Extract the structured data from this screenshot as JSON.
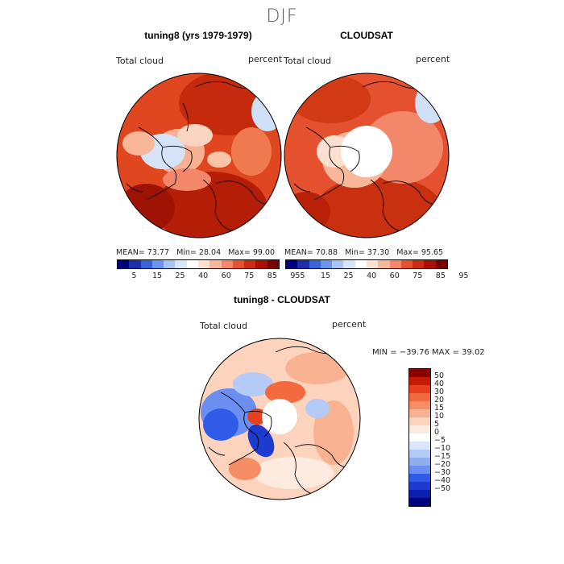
{
  "figure": {
    "title": "DJF"
  },
  "panels": {
    "model": {
      "title": "tuning8 (yrs 1979-1979)",
      "variable": "Total cloud",
      "units": "percent",
      "mean_label": "MEAN=",
      "mean": "73.77",
      "min_label": "Min=",
      "min": "28.04",
      "max_label": "Max=",
      "max": "99.00"
    },
    "obs": {
      "title": "CLOUDSAT",
      "variable": "Total cloud",
      "units": "percent",
      "mean_label": "MEAN=",
      "mean": "70.88",
      "min_label": "Min=",
      "min": "37.30",
      "max_label": "Max=",
      "max": "95.65"
    },
    "diff": {
      "title": "tuning8 - CLOUDSAT",
      "variable": "Total cloud",
      "units": "percent",
      "minmax_text": "MIN = −39.76 MAX =  39.02"
    }
  },
  "colorbars": {
    "abs_ticks": [
      "5",
      "15",
      "25",
      "40",
      "60",
      "75",
      "85",
      "95"
    ],
    "abs_colors": [
      "#00007f",
      "#1a2fa8",
      "#3a63d8",
      "#6d94ec",
      "#a6c4f5",
      "#d6e6fb",
      "#ffffff",
      "#fde0cf",
      "#f9b79a",
      "#f3876a",
      "#e5502f",
      "#cf2a14",
      "#a90f05",
      "#7a0000"
    ],
    "diff_ticks": [
      "50",
      "40",
      "30",
      "20",
      "15",
      "10",
      "5",
      "0",
      "−5",
      "−10",
      "−15",
      "−20",
      "−30",
      "−40",
      "−50"
    ],
    "diff_colors": [
      "#8b0000",
      "#c51b05",
      "#e8401c",
      "#f46a3f",
      "#f78d65",
      "#f9b291",
      "#fcd3bd",
      "#fdebe0",
      "#ffffff",
      "#d9e6fb",
      "#b3cbf6",
      "#8eaeee",
      "#6b8ff0",
      "#2f5be6",
      "#1d3bd0",
      "#0a1fb0",
      "#00007f"
    ]
  }
}
